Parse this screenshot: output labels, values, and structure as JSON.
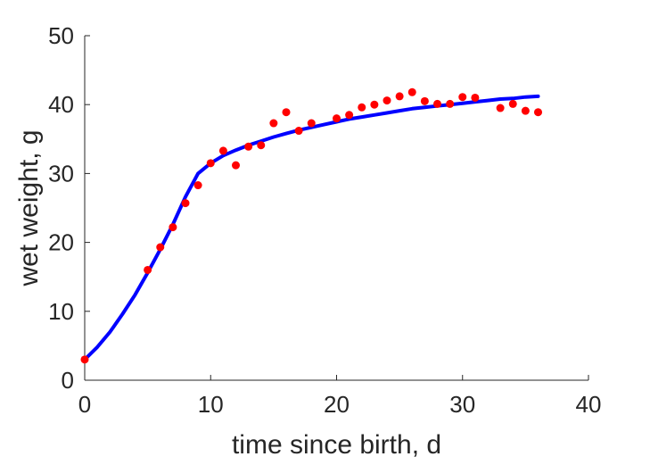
{
  "chart_data": {
    "type": "scatter",
    "title": "",
    "xlabel": "time since birth, d",
    "ylabel": "wet weight, g",
    "xlim": [
      0,
      40
    ],
    "ylim": [
      0,
      50
    ],
    "xticks": [
      0,
      10,
      20,
      30,
      40
    ],
    "yticks": [
      0,
      10,
      20,
      30,
      40,
      50
    ],
    "grid": false,
    "legend": "none",
    "series": [
      {
        "type": "scatter",
        "color": "#ff0000",
        "points": [
          [
            0,
            3.0
          ],
          [
            5,
            16.0
          ],
          [
            6,
            19.3
          ],
          [
            7,
            22.2
          ],
          [
            8,
            25.7
          ],
          [
            9,
            28.3
          ],
          [
            10,
            31.5
          ],
          [
            11,
            33.3
          ],
          [
            12,
            31.2
          ],
          [
            13,
            33.9
          ],
          [
            14,
            34.1
          ],
          [
            15,
            37.3
          ],
          [
            16,
            38.9
          ],
          [
            17,
            36.2
          ],
          [
            18,
            37.3
          ],
          [
            20,
            38.0
          ],
          [
            21,
            38.5
          ],
          [
            22,
            39.6
          ],
          [
            23,
            40.0
          ],
          [
            24,
            40.6
          ],
          [
            25,
            41.2
          ],
          [
            26,
            41.8
          ],
          [
            27,
            40.5
          ],
          [
            28,
            40.1
          ],
          [
            29,
            40.1
          ],
          [
            30,
            41.1
          ],
          [
            31,
            41.0
          ],
          [
            33,
            39.5
          ],
          [
            34,
            40.1
          ],
          [
            35,
            39.1
          ],
          [
            36,
            38.9
          ]
        ]
      },
      {
        "type": "line",
        "color": "#0000ff",
        "points": [
          [
            0,
            3.0
          ],
          [
            1,
            4.8
          ],
          [
            2,
            7.0
          ],
          [
            3,
            9.6
          ],
          [
            4,
            12.4
          ],
          [
            5,
            15.6
          ],
          [
            6,
            19.0
          ],
          [
            7,
            22.6
          ],
          [
            8,
            26.6
          ],
          [
            9,
            30.0
          ],
          [
            10,
            31.5
          ],
          [
            11,
            32.6
          ],
          [
            12,
            33.4
          ],
          [
            13,
            34.1
          ],
          [
            14,
            34.7
          ],
          [
            15,
            35.3
          ],
          [
            16,
            35.8
          ],
          [
            17,
            36.3
          ],
          [
            18,
            36.7
          ],
          [
            19,
            37.1
          ],
          [
            20,
            37.5
          ],
          [
            21,
            37.9
          ],
          [
            22,
            38.2
          ],
          [
            23,
            38.5
          ],
          [
            24,
            38.8
          ],
          [
            25,
            39.1
          ],
          [
            26,
            39.4
          ],
          [
            27,
            39.6
          ],
          [
            28,
            39.8
          ],
          [
            29,
            40.0
          ],
          [
            30,
            40.2
          ],
          [
            31,
            40.4
          ],
          [
            32,
            40.6
          ],
          [
            33,
            40.8
          ],
          [
            34,
            40.9
          ],
          [
            35,
            41.1
          ],
          [
            36,
            41.2
          ]
        ]
      }
    ]
  }
}
